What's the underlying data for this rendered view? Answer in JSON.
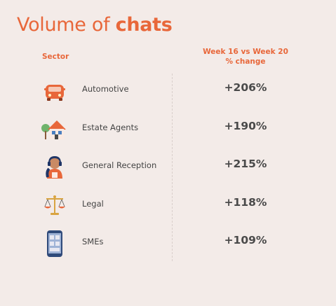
{
  "title": {
    "prefix": "Volume of ",
    "bold": "chats"
  },
  "chart_data": {
    "type": "table",
    "columns": [
      "Sector",
      "Week 16 vs Week 20 % change"
    ],
    "rows": [
      {
        "sector": "Automotive",
        "change": "+206%",
        "value": 206,
        "icon": "car-icon"
      },
      {
        "sector": "Estate Agents",
        "change": "+190%",
        "value": 190,
        "icon": "house-icon"
      },
      {
        "sector": "General Reception",
        "change": "+215%",
        "value": 215,
        "icon": "receptionist-icon"
      },
      {
        "sector": "Legal",
        "change": "+118%",
        "value": 118,
        "icon": "scales-icon"
      },
      {
        "sector": "SMEs",
        "change": "+109%",
        "value": 109,
        "icon": "phone-icon"
      }
    ]
  },
  "headers": {
    "sector": "Sector",
    "change_line1": "Week 16 vs Week 20",
    "change_line2": "% change"
  },
  "colors": {
    "accent": "#e8673a",
    "background": "#f3ebe8",
    "text": "#4a4a4a"
  }
}
